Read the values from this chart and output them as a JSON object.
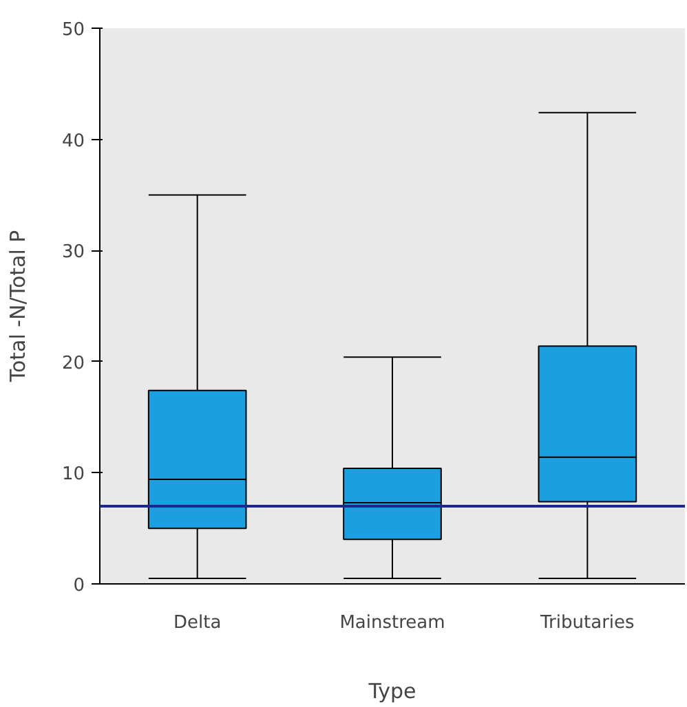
{
  "chart_data": {
    "type": "box",
    "xlabel": "Type",
    "ylabel": "Total -N/Total P",
    "categories": [
      "Delta",
      "Mainstream",
      "Tributaries"
    ],
    "series": [
      {
        "color": "#1aa0e0",
        "boxes": [
          {
            "low": 0.5,
            "q1": 5.0,
            "median": 9.4,
            "q3": 17.4,
            "high": 35.0
          },
          {
            "low": 0.5,
            "q1": 4.0,
            "median": 7.3,
            "q3": 10.4,
            "high": 20.4
          },
          {
            "low": 0.5,
            "q1": 7.4,
            "median": 11.4,
            "q3": 21.4,
            "high": 42.4
          }
        ]
      }
    ],
    "ylim": [
      0,
      50
    ],
    "yticks": [
      0,
      10,
      20,
      30,
      40,
      50
    ],
    "ref_lines": [
      {
        "axis": "y",
        "value": 7,
        "color": "#1c2590"
      }
    ]
  }
}
